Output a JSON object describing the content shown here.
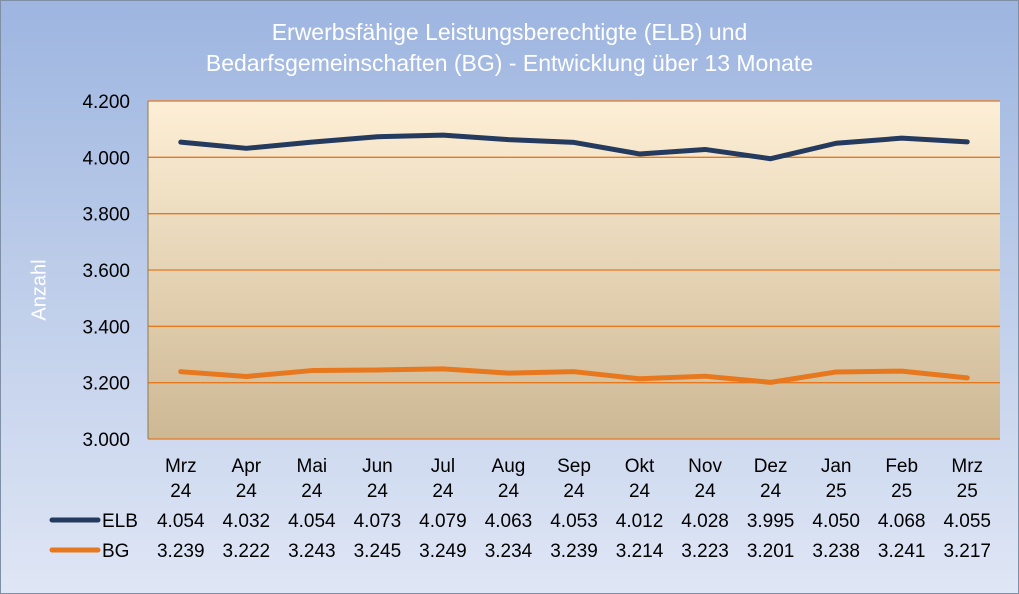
{
  "chart_data": {
    "type": "line",
    "title_lines": [
      "Erwerbsfähige Leistungsberechtigte (ELB) und",
      "Bedarfsgemeinschaften (BG) - Entwicklung über 13 Monate"
    ],
    "ylabel": "Anzahl",
    "xlabel": "",
    "ylim": [
      3000,
      4200
    ],
    "yticks": [
      3000,
      3200,
      3400,
      3600,
      3800,
      4000,
      4200
    ],
    "ytick_labels": [
      "3.000",
      "3.200",
      "3.400",
      "3.600",
      "3.800",
      "4.000",
      "4.200"
    ],
    "grid": true,
    "legend_placement": "data-table-left",
    "categories": [
      [
        "Mrz",
        "24"
      ],
      [
        "Apr",
        "24"
      ],
      [
        "Mai",
        "24"
      ],
      [
        "Jun",
        "24"
      ],
      [
        "Jul",
        "24"
      ],
      [
        "Aug",
        "24"
      ],
      [
        "Sep",
        "24"
      ],
      [
        "Okt",
        "24"
      ],
      [
        "Nov",
        "24"
      ],
      [
        "Dez",
        "24"
      ],
      [
        "Jan",
        "25"
      ],
      [
        "Feb",
        "25"
      ],
      [
        "Mrz",
        "25"
      ]
    ],
    "series": [
      {
        "name": "ELB",
        "color": "#243a5e",
        "values": [
          4054,
          4032,
          4054,
          4073,
          4079,
          4063,
          4053,
          4012,
          4028,
          3995,
          4050,
          4068,
          4055
        ],
        "labels": [
          "4.054",
          "4.032",
          "4.054",
          "4.073",
          "4.079",
          "4.063",
          "4.053",
          "4.012",
          "4.028",
          "3.995",
          "4.050",
          "4.068",
          "4.055"
        ]
      },
      {
        "name": "BG",
        "color": "#e8781e",
        "values": [
          3239,
          3222,
          3243,
          3245,
          3249,
          3234,
          3239,
          3214,
          3223,
          3201,
          3238,
          3241,
          3217
        ],
        "labels": [
          "3.239",
          "3.222",
          "3.243",
          "3.245",
          "3.249",
          "3.234",
          "3.239",
          "3.214",
          "3.223",
          "3.201",
          "3.238",
          "3.241",
          "3.217"
        ]
      }
    ],
    "colors": {
      "gridline": "#e8781e",
      "plot_top": "#fdefd6",
      "plot_bottom": "#cdb894",
      "title": "#ffffff"
    }
  }
}
